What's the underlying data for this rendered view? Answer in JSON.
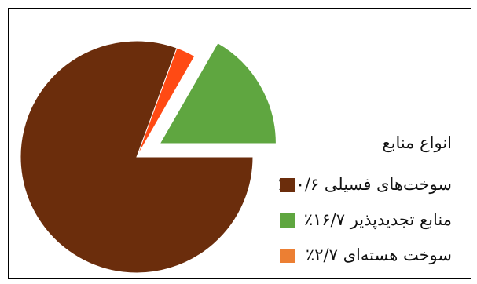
{
  "chart_data": {
    "type": "pie",
    "title": "",
    "legend_title": "انواع منابع",
    "legend_position": "right",
    "series": [
      {
        "name": "سوخت‌های فسیلی",
        "label": "سوخت‌های فسیلی ۸۰/۶٪",
        "value": 80.6,
        "color": "#6b2d0c",
        "exploded": false
      },
      {
        "name": "منابع تجدیدپذیر",
        "label": "منابع تجدیدپذیر ۱۶/۷٪",
        "value": 16.7,
        "color": "#5fa640",
        "exploded": true
      },
      {
        "name": "سوخت هسته‌ای",
        "label": "سوخت هسته‌ای ۲/۷٪",
        "value": 2.7,
        "color": "#ff4a14",
        "legend_color": "#ec7f33",
        "exploded": false
      }
    ]
  }
}
